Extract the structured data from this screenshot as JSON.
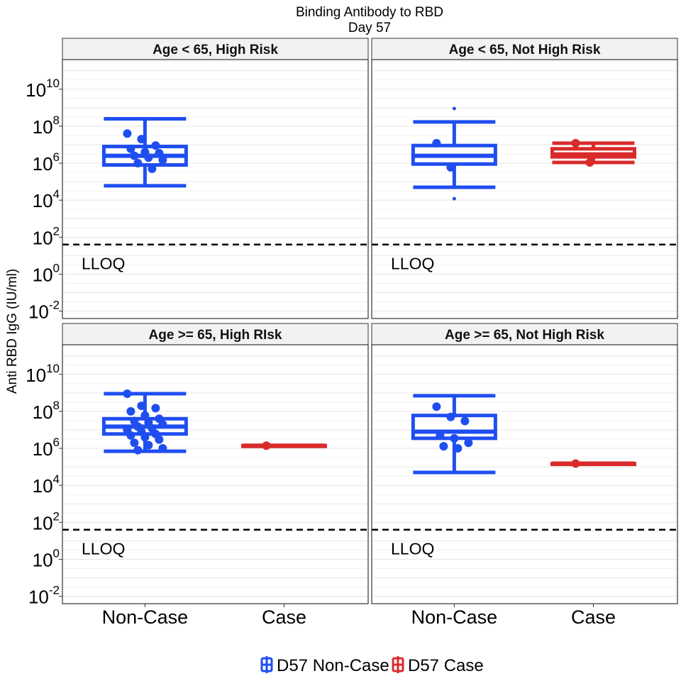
{
  "chart_data": {
    "type": "box",
    "title": "Binding Antibody to RBD",
    "subtitle": "Day 57",
    "ylabel": "Anti RBD IgG (IU/ml)",
    "y_scale": "log10",
    "ylim": [
      0.004,
      400000000000
    ],
    "y_ticks": [
      "10^-2",
      "10^0",
      "10^2",
      "10^4",
      "10^6",
      "10^8",
      "10^10"
    ],
    "categories": [
      "Non-Case",
      "Case"
    ],
    "lloq": {
      "label": "LLOQ",
      "value": 40
    },
    "colors": {
      "noncase": "#1f4ef0",
      "case": "#d92b2b"
    },
    "legend": {
      "position": "bottom",
      "entries": [
        {
          "label": "D57 Non-Case",
          "color": "#1f4ef0"
        },
        {
          "label": "D57 Case",
          "color": "#d92b2b"
        }
      ]
    },
    "panels": [
      {
        "title": "Age < 65, High Risk",
        "boxes": [
          {
            "category": "Non-Case",
            "color": "noncase",
            "whisker_low": 60000,
            "q1": 800000,
            "median": 2500000,
            "q3": 8000000,
            "whisker_high": 250000000,
            "outliers": [],
            "points": [
              40000000,
              20000000,
              9000000,
              6000000,
              4000000,
              3500000,
              2500000,
              2000000,
              1500000,
              1000000,
              500000
            ]
          },
          {
            "category": "Case",
            "color": "case",
            "whisker_low": null,
            "q1": null,
            "median": null,
            "q3": null,
            "whisker_high": null,
            "outliers": [],
            "points": []
          }
        ]
      },
      {
        "title": "Age < 65, Not High Risk",
        "boxes": [
          {
            "category": "Non-Case",
            "color": "noncase",
            "whisker_low": 50000,
            "q1": 900000,
            "median": 2500000,
            "q3": 9000000,
            "whisker_high": 170000000,
            "outliers": [
              900000000,
              12000
            ],
            "points": [
              12000000,
              600000
            ]
          },
          {
            "category": "Case",
            "color": "case",
            "whisker_low": 1100000,
            "q1": 2200000,
            "median": 3000000,
            "q3": 6000000,
            "whisker_high": 12000000,
            "outliers": [],
            "points": [
              12000000,
              1100000
            ]
          }
        ]
      },
      {
        "title": "Age >= 65, High RIsk",
        "boxes": [
          {
            "category": "Non-Case",
            "color": "noncase",
            "whisker_low": 700000,
            "q1": 6000000,
            "median": 15000000,
            "q3": 40000000,
            "whisker_high": 900000000,
            "outliers": [],
            "points": [
              900000000,
              200000000,
              150000000,
              100000000,
              60000000,
              40000000,
              30000000,
              25000000,
              20000000,
              15000000,
              12000000,
              10000000,
              8000000,
              6000000,
              5000000,
              4000000,
              3000000,
              2000000,
              1500000,
              1000000,
              800000
            ]
          },
          {
            "category": "Case",
            "color": "case",
            "whisker_low": 1400000,
            "q1": 1400000,
            "median": 1400000,
            "q3": 1400000,
            "whisker_high": 1400000,
            "outliers": [],
            "points": [
              1400000
            ]
          }
        ]
      },
      {
        "title": "Age >= 65, Not High Risk",
        "boxes": [
          {
            "category": "Non-Case",
            "color": "noncase",
            "whisker_low": 50000,
            "q1": 3500000,
            "median": 8000000,
            "q3": 60000000,
            "whisker_high": 700000000,
            "outliers": [],
            "points": [
              180000000,
              50000000,
              30000000,
              5000000,
              3500000,
              2000000,
              1300000,
              1000000
            ]
          },
          {
            "category": "Case",
            "color": "case",
            "whisker_low": 150000,
            "q1": 150000,
            "median": 150000,
            "q3": 150000,
            "whisker_high": 150000,
            "outliers": [],
            "points": [
              150000
            ]
          }
        ]
      }
    ]
  }
}
